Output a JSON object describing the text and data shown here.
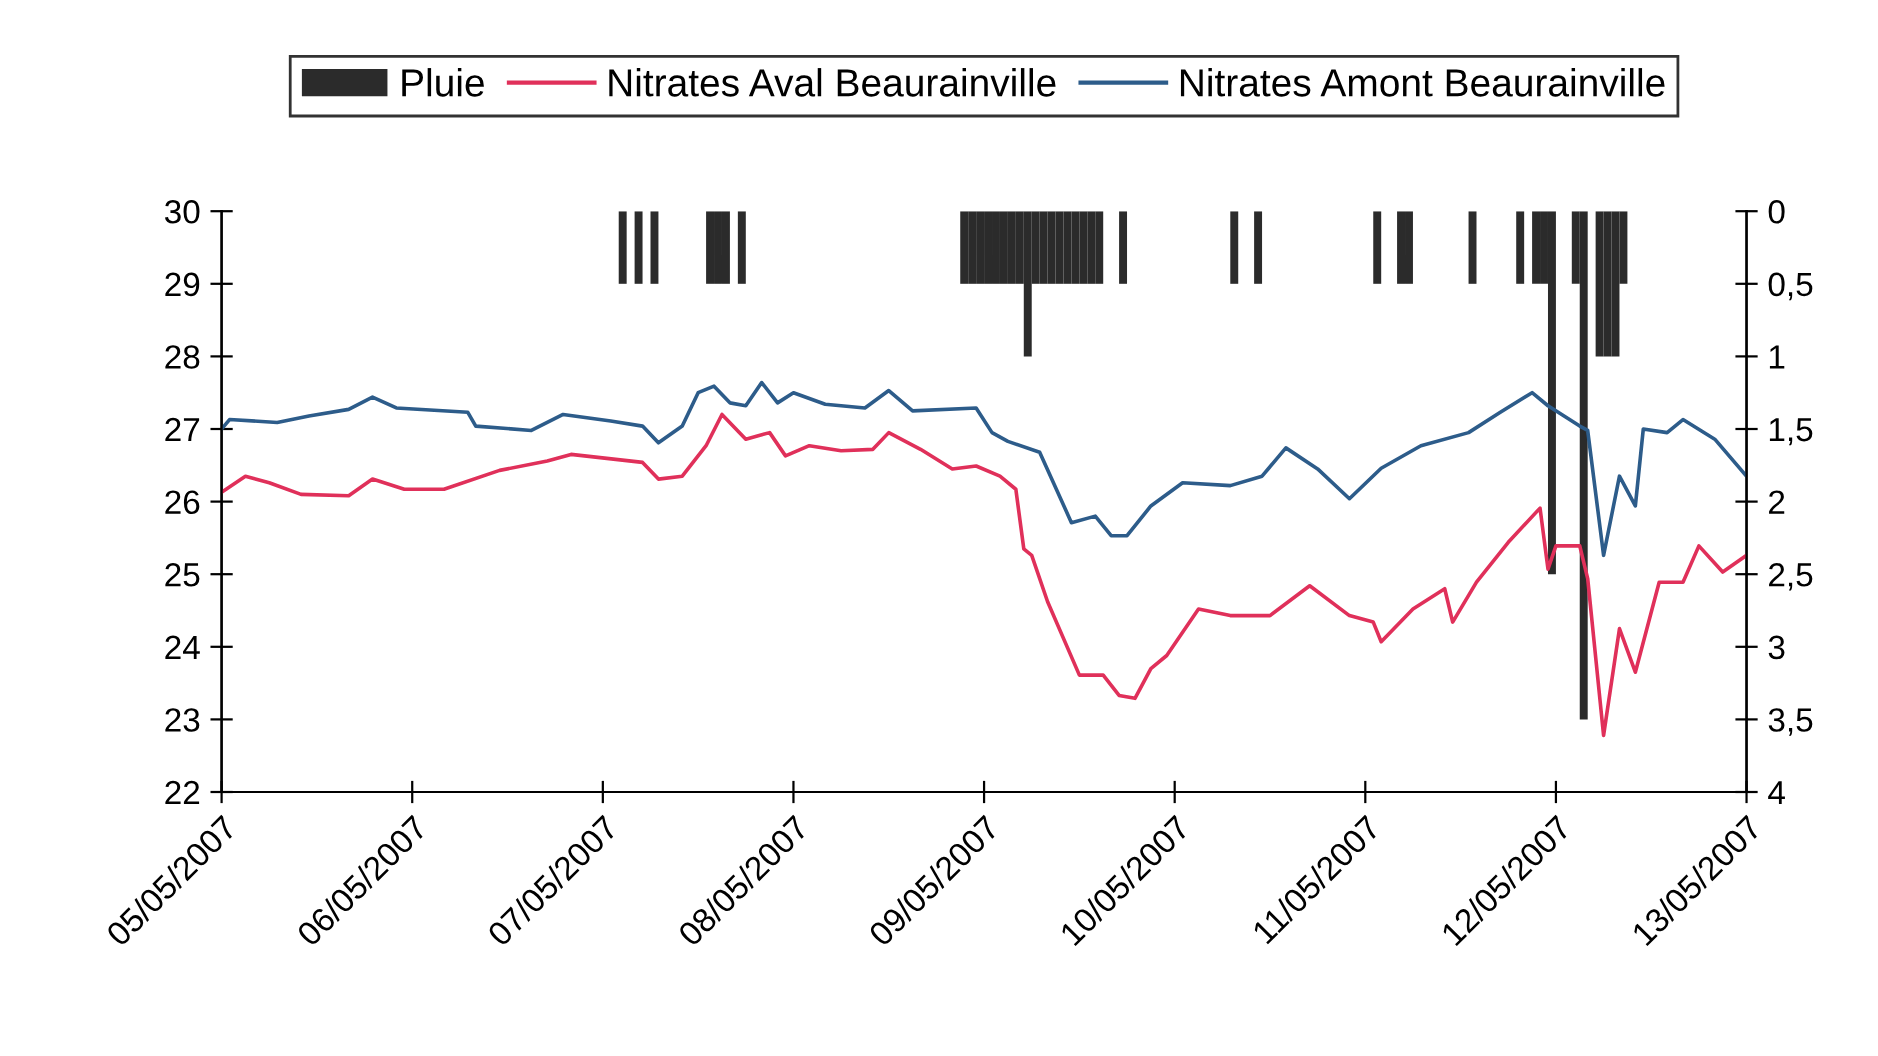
{
  "chart_data": {
    "type": "line",
    "legend": "top",
    "grid": false,
    "marker": "none",
    "line_style": "solid",
    "xlim": [
      "2007-05-05",
      "2007-05-13"
    ],
    "xticks": [
      {
        "value": "2007-05-05",
        "label": "05/05/2007"
      },
      {
        "value": "2007-05-06",
        "label": "06/05/2007"
      },
      {
        "value": "2007-05-07",
        "label": "07/05/2007"
      },
      {
        "value": "2007-05-08",
        "label": "08/05/2007"
      },
      {
        "value": "2007-05-09",
        "label": "09/05/2007"
      },
      {
        "value": "2007-05-10",
        "label": "10/05/2007"
      },
      {
        "value": "2007-05-11",
        "label": "11/05/2007"
      },
      {
        "value": "2007-05-12",
        "label": "12/05/2007"
      },
      {
        "value": "2007-05-13",
        "label": "13/05/2007"
      }
    ],
    "ylim": [
      22,
      30
    ],
    "yticks": [
      22,
      23,
      24,
      25,
      26,
      27,
      28,
      29,
      30
    ],
    "y2lim": [
      4,
      0
    ],
    "y2ticks": [
      {
        "value": 0,
        "label": "0"
      },
      {
        "value": 0.5,
        "label": "0,5"
      },
      {
        "value": 1,
        "label": "1"
      },
      {
        "value": 1.5,
        "label": "1,5"
      },
      {
        "value": 2,
        "label": "2"
      },
      {
        "value": 2.5,
        "label": "2,5"
      },
      {
        "value": 3,
        "label": "3"
      },
      {
        "value": 3.5,
        "label": "3,5"
      },
      {
        "value": 4,
        "label": "4"
      }
    ],
    "series": [
      {
        "name": "Pluie",
        "type": "bar",
        "axis": "y2",
        "color": "#2b2b2b",
        "x": [
          "2007-05-07T02:00",
          "2007-05-07T04:00",
          "2007-05-07T06:00",
          "2007-05-07T13:00",
          "2007-05-07T14:00",
          "2007-05-07T15:00",
          "2007-05-07T17:00",
          "2007-05-08T21:00",
          "2007-05-08T22:00",
          "2007-05-08T23:00",
          "2007-05-09T00:00",
          "2007-05-09T01:00",
          "2007-05-09T02:00",
          "2007-05-09T03:00",
          "2007-05-09T04:00",
          "2007-05-09T05:00",
          "2007-05-09T06:00",
          "2007-05-09T07:00",
          "2007-05-09T08:00",
          "2007-05-09T09:00",
          "2007-05-09T10:00",
          "2007-05-09T11:00",
          "2007-05-09T12:00",
          "2007-05-09T13:00",
          "2007-05-09T14:00",
          "2007-05-09T17:00",
          "2007-05-10T07:00",
          "2007-05-10T10:00",
          "2007-05-11T01:00",
          "2007-05-11T04:00",
          "2007-05-11T05:00",
          "2007-05-11T13:00",
          "2007-05-11T19:00",
          "2007-05-11T21:00",
          "2007-05-11T22:00",
          "2007-05-11T23:00",
          "2007-05-12T02:00",
          "2007-05-12T03:00",
          "2007-05-12T05:00",
          "2007-05-12T06:00",
          "2007-05-12T07:00",
          "2007-05-12T08:00"
        ],
        "values": [
          0.5,
          0.5,
          0.5,
          0.5,
          0.5,
          0.5,
          0.5,
          0.5,
          0.5,
          0.5,
          0.5,
          0.5,
          0.5,
          0.5,
          0.5,
          1,
          0.5,
          0.5,
          0.5,
          0.5,
          0.5,
          0.5,
          0.5,
          0.5,
          0.5,
          0.5,
          0.5,
          0.5,
          0.5,
          0.5,
          0.5,
          0.5,
          0.5,
          0.5,
          0.5,
          2.5,
          0.5,
          3.5,
          1,
          1,
          1,
          0.5
        ]
      },
      {
        "name": "Nitrates Aval Beaurainville",
        "color": "#e0305a",
        "x": [
          "2007-05-05T00:00",
          "2007-05-05T03:00",
          "2007-05-05T06:00",
          "2007-05-05T10:00",
          "2007-05-05T16:00",
          "2007-05-05T19:00",
          "2007-05-05T23:00",
          "2007-05-06T04:00",
          "2007-05-06T11:00",
          "2007-05-06T17:00",
          "2007-05-06T20:00",
          "2007-05-07T05:00",
          "2007-05-07T07:00",
          "2007-05-07T10:00",
          "2007-05-07T13:00",
          "2007-05-07T15:00",
          "2007-05-07T18:00",
          "2007-05-07T21:00",
          "2007-05-07T23:00",
          "2007-05-08T02:00",
          "2007-05-08T06:00",
          "2007-05-08T10:00",
          "2007-05-08T12:00",
          "2007-05-08T16:00",
          "2007-05-08T20:00",
          "2007-05-08T23:00",
          "2007-05-09T02:00",
          "2007-05-09T04:00",
          "2007-05-09T05:00",
          "2007-05-09T06:00",
          "2007-05-09T08:00",
          "2007-05-09T12:00",
          "2007-05-09T15:00",
          "2007-05-09T17:00",
          "2007-05-09T19:00",
          "2007-05-09T21:00",
          "2007-05-09T23:00",
          "2007-05-10T03:00",
          "2007-05-10T07:00",
          "2007-05-10T12:00",
          "2007-05-10T17:00",
          "2007-05-10T22:00",
          "2007-05-11T01:00",
          "2007-05-11T02:00",
          "2007-05-11T06:00",
          "2007-05-11T10:00",
          "2007-05-11T11:00",
          "2007-05-11T14:00",
          "2007-05-11T18:00",
          "2007-05-11T22:00",
          "2007-05-11T23:00",
          "2007-05-12T00:00",
          "2007-05-12T03:00",
          "2007-05-12T04:00",
          "2007-05-12T06:00",
          "2007-05-12T08:00",
          "2007-05-12T10:00",
          "2007-05-12T13:00",
          "2007-05-12T16:00",
          "2007-05-12T18:00",
          "2007-05-12T21:00",
          "2007-05-13T00:00"
        ],
        "values": [
          26.13,
          26.35,
          26.26,
          26.1,
          26.08,
          26.31,
          26.17,
          26.17,
          26.43,
          26.56,
          26.65,
          26.54,
          26.31,
          26.35,
          26.77,
          27.2,
          26.86,
          26.95,
          26.63,
          26.77,
          26.7,
          26.72,
          26.95,
          26.72,
          26.45,
          26.49,
          26.35,
          26.17,
          25.35,
          25.26,
          24.62,
          23.61,
          23.61,
          23.33,
          23.29,
          23.7,
          23.88,
          24.52,
          24.43,
          24.43,
          24.84,
          24.43,
          24.34,
          24.07,
          24.52,
          24.8,
          24.34,
          24.89,
          25.44,
          25.91,
          25.07,
          25.39,
          25.39,
          24.94,
          22.78,
          24.25,
          23.65,
          24.89,
          24.89,
          25.39,
          25.03,
          25.26
        ]
      },
      {
        "name": "Nitrates Amont Beaurainville",
        "color": "#2d5c8a",
        "x": [
          "2007-05-05T00:00",
          "2007-05-05T01:00",
          "2007-05-05T07:00",
          "2007-05-05T11:00",
          "2007-05-05T16:00",
          "2007-05-05T19:00",
          "2007-05-05T22:00",
          "2007-05-06T07:00",
          "2007-05-06T08:00",
          "2007-05-06T15:00",
          "2007-05-06T19:00",
          "2007-05-07T01:00",
          "2007-05-07T05:00",
          "2007-05-07T07:00",
          "2007-05-07T10:00",
          "2007-05-07T12:00",
          "2007-05-07T14:00",
          "2007-05-07T16:00",
          "2007-05-07T18:00",
          "2007-05-07T20:00",
          "2007-05-07T22:00",
          "2007-05-08T00:00",
          "2007-05-08T04:00",
          "2007-05-08T09:00",
          "2007-05-08T12:00",
          "2007-05-08T15:00",
          "2007-05-08T23:00",
          "2007-05-09T01:00",
          "2007-05-09T03:00",
          "2007-05-09T07:00",
          "2007-05-09T11:00",
          "2007-05-09T14:00",
          "2007-05-09T16:00",
          "2007-05-09T18:00",
          "2007-05-09T21:00",
          "2007-05-10T01:00",
          "2007-05-10T07:00",
          "2007-05-10T11:00",
          "2007-05-10T14:00",
          "2007-05-10T18:00",
          "2007-05-10T22:00",
          "2007-05-11T02:00",
          "2007-05-11T07:00",
          "2007-05-11T13:00",
          "2007-05-11T17:00",
          "2007-05-11T21:00",
          "2007-05-11T23:00",
          "2007-05-12T03:00",
          "2007-05-12T04:00",
          "2007-05-12T06:00",
          "2007-05-12T08:00",
          "2007-05-12T10:00",
          "2007-05-12T11:00",
          "2007-05-12T14:00",
          "2007-05-12T16:00",
          "2007-05-12T20:00",
          "2007-05-13T00:00"
        ],
        "values": [
          27.0,
          27.13,
          27.09,
          27.18,
          27.27,
          27.44,
          27.29,
          27.23,
          27.04,
          26.98,
          27.2,
          27.11,
          27.04,
          26.81,
          27.04,
          27.5,
          27.59,
          27.36,
          27.32,
          27.64,
          27.36,
          27.5,
          27.34,
          27.29,
          27.53,
          27.25,
          27.29,
          26.95,
          26.83,
          26.68,
          25.71,
          25.8,
          25.53,
          25.53,
          25.94,
          26.26,
          26.22,
          26.35,
          26.74,
          26.45,
          26.04,
          26.46,
          26.77,
          26.95,
          27.23,
          27.5,
          27.32,
          27.04,
          26.98,
          25.26,
          26.35,
          25.94,
          27.0,
          26.95,
          27.13,
          26.86,
          26.35
        ]
      }
    ]
  }
}
